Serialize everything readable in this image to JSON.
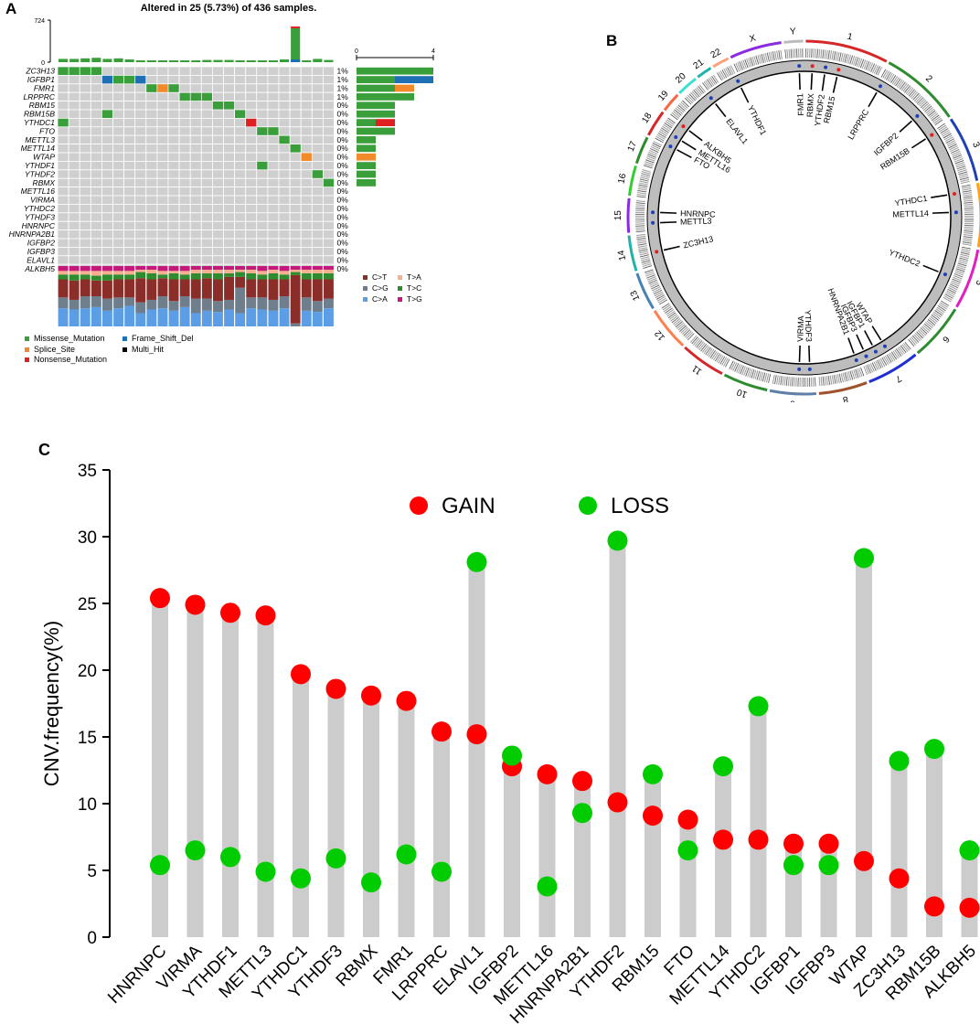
{
  "panels": {
    "a": "A",
    "b": "B",
    "c": "C"
  },
  "oncoplot": {
    "title": "Altered in 25 (5.73%) of 436 samples.",
    "tmb_axis": {
      "max": "724",
      "min": "0"
    },
    "side_axis": {
      "min": "0",
      "max": "4"
    },
    "genes": [
      {
        "name": "ZC3H13",
        "pct": "1%"
      },
      {
        "name": "IGFBP1",
        "pct": "1%"
      },
      {
        "name": "FMR1",
        "pct": "1%"
      },
      {
        "name": "LRPPRC",
        "pct": "1%"
      },
      {
        "name": "RBM15",
        "pct": "0%"
      },
      {
        "name": "RBM15B",
        "pct": "0%"
      },
      {
        "name": "YTHDC1",
        "pct": "0%"
      },
      {
        "name": "FTO",
        "pct": "0%"
      },
      {
        "name": "METTL3",
        "pct": "0%"
      },
      {
        "name": "METTL14",
        "pct": "0%"
      },
      {
        "name": "WTAP",
        "pct": "0%"
      },
      {
        "name": "YTHDF1",
        "pct": "0%"
      },
      {
        "name": "YTHDF2",
        "pct": "0%"
      },
      {
        "name": "RBMX",
        "pct": "0%"
      },
      {
        "name": "METTL16",
        "pct": "0%"
      },
      {
        "name": "VIRMA",
        "pct": "0%"
      },
      {
        "name": "YTHDC2",
        "pct": "0%"
      },
      {
        "name": "YTHDF3",
        "pct": "0%"
      },
      {
        "name": "HNRNPC",
        "pct": "0%"
      },
      {
        "name": "HNRNPA2B1",
        "pct": "0%"
      },
      {
        "name": "IGFBP2",
        "pct": "0%"
      },
      {
        "name": "IGFBP3",
        "pct": "0%"
      },
      {
        "name": "ELAVL1",
        "pct": "0%"
      },
      {
        "name": "ALKBH5",
        "pct": "0%"
      }
    ],
    "side_bars": [
      [
        {
          "t": "m",
          "v": 4
        }
      ],
      [
        {
          "t": "m",
          "v": 2
        },
        {
          "t": "f",
          "v": 2
        }
      ],
      [
        {
          "t": "m",
          "v": 2
        },
        {
          "t": "s",
          "v": 1
        }
      ],
      [
        {
          "t": "m",
          "v": 3
        }
      ],
      [
        {
          "t": "m",
          "v": 2
        }
      ],
      [
        {
          "t": "m",
          "v": 2
        }
      ],
      [
        {
          "t": "m",
          "v": 1
        },
        {
          "t": "n",
          "v": 1
        }
      ],
      [
        {
          "t": "m",
          "v": 2
        }
      ],
      [
        {
          "t": "m",
          "v": 1
        }
      ],
      [
        {
          "t": "m",
          "v": 1
        }
      ],
      [
        {
          "t": "s",
          "v": 1
        }
      ],
      [
        {
          "t": "m",
          "v": 1
        }
      ],
      [
        {
          "t": "m",
          "v": 1
        }
      ],
      [
        {
          "t": "m",
          "v": 1
        }
      ]
    ],
    "cells": [
      {
        "row": 0,
        "col": 0,
        "t": "m"
      },
      {
        "row": 0,
        "col": 1,
        "t": "m"
      },
      {
        "row": 0,
        "col": 2,
        "t": "m"
      },
      {
        "row": 0,
        "col": 3,
        "t": "m"
      },
      {
        "row": 1,
        "col": 4,
        "t": "f"
      },
      {
        "row": 1,
        "col": 5,
        "t": "m"
      },
      {
        "row": 1,
        "col": 6,
        "t": "m"
      },
      {
        "row": 1,
        "col": 7,
        "t": "f"
      },
      {
        "row": 2,
        "col": 8,
        "t": "m"
      },
      {
        "row": 2,
        "col": 9,
        "t": "s"
      },
      {
        "row": 2,
        "col": 10,
        "t": "m"
      },
      {
        "row": 3,
        "col": 11,
        "t": "m"
      },
      {
        "row": 3,
        "col": 12,
        "t": "m"
      },
      {
        "row": 3,
        "col": 13,
        "t": "m"
      },
      {
        "row": 4,
        "col": 14,
        "t": "m"
      },
      {
        "row": 4,
        "col": 15,
        "t": "m"
      },
      {
        "row": 5,
        "col": 4,
        "t": "m"
      },
      {
        "row": 5,
        "col": 16,
        "t": "m"
      },
      {
        "row": 6,
        "col": 0,
        "t": "m"
      },
      {
        "row": 6,
        "col": 17,
        "t": "n"
      },
      {
        "row": 7,
        "col": 18,
        "t": "m"
      },
      {
        "row": 7,
        "col": 19,
        "t": "m"
      },
      {
        "row": 8,
        "col": 20,
        "t": "m"
      },
      {
        "row": 9,
        "col": 21,
        "t": "m"
      },
      {
        "row": 10,
        "col": 22,
        "t": "s"
      },
      {
        "row": 11,
        "col": 18,
        "t": "m"
      },
      {
        "row": 12,
        "col": 23,
        "t": "m"
      },
      {
        "row": 13,
        "col": 24,
        "t": "m"
      }
    ],
    "tmb": [
      {
        "v": 0.06,
        "t": "m"
      },
      {
        "v": 0.06,
        "t": "m"
      },
      {
        "v": 0.07,
        "t": "m"
      },
      {
        "v": 0.08,
        "t": "m"
      },
      {
        "v": 0.06,
        "t": "m"
      },
      {
        "v": 0.07,
        "t": "m"
      },
      {
        "v": 0.05,
        "t": "m"
      },
      {
        "v": 0.03,
        "t": "m"
      },
      {
        "v": 0.03,
        "t": "m"
      },
      {
        "v": 0.03,
        "t": "m"
      },
      {
        "v": 0.02,
        "t": "m"
      },
      {
        "v": 0.02,
        "t": "m"
      },
      {
        "v": 0.03,
        "t": "m"
      },
      {
        "v": 0.04,
        "t": "m"
      },
      {
        "v": 0.04,
        "t": "m"
      },
      {
        "v": 0.04,
        "t": "m"
      },
      {
        "v": 0.03,
        "t": "m"
      },
      {
        "v": 0.02,
        "t": "m"
      },
      {
        "v": 0.03,
        "t": "m"
      },
      {
        "v": 0.02,
        "t": "m"
      },
      {
        "v": 0.05,
        "t": "m"
      },
      {
        "v": 0.62,
        "t": "mt"
      },
      {
        "v": 0.03,
        "t": "m"
      },
      {
        "v": 0.06,
        "t": "m"
      },
      {
        "v": 0.04,
        "t": "m"
      }
    ],
    "titv": [
      [
        0.3,
        0.18,
        0.3,
        0.08,
        0.06,
        0.08
      ],
      [
        0.28,
        0.16,
        0.32,
        0.1,
        0.06,
        0.08
      ],
      [
        0.3,
        0.2,
        0.28,
        0.08,
        0.06,
        0.08
      ],
      [
        0.32,
        0.18,
        0.26,
        0.08,
        0.08,
        0.08
      ],
      [
        0.26,
        0.2,
        0.3,
        0.1,
        0.06,
        0.08
      ],
      [
        0.3,
        0.18,
        0.3,
        0.08,
        0.06,
        0.08
      ],
      [
        0.34,
        0.14,
        0.3,
        0.08,
        0.06,
        0.08
      ],
      [
        0.22,
        0.18,
        0.4,
        0.1,
        0.04,
        0.06
      ],
      [
        0.28,
        0.16,
        0.34,
        0.1,
        0.06,
        0.06
      ],
      [
        0.3,
        0.2,
        0.3,
        0.06,
        0.06,
        0.08
      ],
      [
        0.26,
        0.16,
        0.36,
        0.1,
        0.04,
        0.08
      ],
      [
        0.32,
        0.18,
        0.28,
        0.08,
        0.06,
        0.08
      ],
      [
        0.22,
        0.24,
        0.32,
        0.1,
        0.06,
        0.06
      ],
      [
        0.26,
        0.2,
        0.34,
        0.08,
        0.06,
        0.06
      ],
      [
        0.24,
        0.18,
        0.36,
        0.1,
        0.06,
        0.06
      ],
      [
        0.28,
        0.16,
        0.38,
        0.06,
        0.06,
        0.06
      ],
      [
        0.22,
        0.42,
        0.18,
        0.08,
        0.04,
        0.06
      ],
      [
        0.3,
        0.18,
        0.3,
        0.1,
        0.06,
        0.06
      ],
      [
        0.28,
        0.2,
        0.3,
        0.08,
        0.06,
        0.08
      ],
      [
        0.26,
        0.18,
        0.34,
        0.1,
        0.06,
        0.06
      ],
      [
        0.3,
        0.2,
        0.28,
        0.08,
        0.06,
        0.08
      ],
      [
        0.0,
        0.05,
        0.8,
        0.05,
        0.04,
        0.06
      ],
      [
        0.26,
        0.22,
        0.3,
        0.1,
        0.06,
        0.06
      ],
      [
        0.24,
        0.18,
        0.36,
        0.1,
        0.06,
        0.06
      ],
      [
        0.3,
        0.16,
        0.32,
        0.1,
        0.06,
        0.06
      ]
    ],
    "titv_legend": [
      {
        "label": "C>T",
        "color": "#8b2e2a"
      },
      {
        "label": "T>A",
        "color": "#f6b08f"
      },
      {
        "label": "C>G",
        "color": "#6e7e8c"
      },
      {
        "label": "T>C",
        "color": "#2e8b2e"
      },
      {
        "label": "C>A",
        "color": "#5b9ee6"
      },
      {
        "label": "T>G",
        "color": "#c4197a"
      }
    ],
    "variant_legend": [
      {
        "label": "Missense_Mutation",
        "color": "#3a9e3a"
      },
      {
        "label": "Frame_Shift_Del",
        "color": "#1f6fb4"
      },
      {
        "label": "Splice_Site",
        "color": "#f08a2a"
      },
      {
        "label": "Multi_Hit",
        "color": "#000000"
      },
      {
        "label": "Nonsense_Mutation",
        "color": "#e02020"
      }
    ]
  },
  "circos": {
    "chromosomes": [
      "1",
      "2",
      "3",
      "4",
      "5",
      "6",
      "7",
      "8",
      "9",
      "10",
      "11",
      "12",
      "13",
      "14",
      "15",
      "16",
      "17",
      "18",
      "19",
      "20",
      "21",
      "22",
      "X",
      "Y"
    ],
    "gene_labels": [
      {
        "name": "FMR1",
        "angle": -2
      },
      {
        "name": "RBMX",
        "angle": 3
      },
      {
        "name": "YTHDF2",
        "angle": 8
      },
      {
        "name": "RBM15",
        "angle": 13
      },
      {
        "name": "LRPPRC",
        "angle": 30
      },
      {
        "name": "IGFBP2",
        "angle": 48
      },
      {
        "name": "RBM15B",
        "angle": 57
      },
      {
        "name": "YTHDC1",
        "angle": 81
      },
      {
        "name": "METTL14",
        "angle": 88
      },
      {
        "name": "YTHDC2",
        "angle": 112
      },
      {
        "name": "WTAP",
        "angle": 148
      },
      {
        "name": "IGFBP1",
        "angle": 152
      },
      {
        "name": "IGFBP3",
        "angle": 156
      },
      {
        "name": "HNRNPA2B1",
        "angle": 160
      },
      {
        "name": "YTHDF3",
        "angle": 178
      },
      {
        "name": "VIRMA",
        "angle": 182
      },
      {
        "name": "ZC3H13",
        "angle": 257
      },
      {
        "name": "METTL3",
        "angle": 268
      },
      {
        "name": "HNRNPC",
        "angle": 272
      },
      {
        "name": "FTO",
        "angle": 298
      },
      {
        "name": "METTL16",
        "angle": 302
      },
      {
        "name": "ALKBH5",
        "angle": 307
      },
      {
        "name": "ELAVL1",
        "angle": 322
      },
      {
        "name": "YTHDF1",
        "angle": 334
      }
    ]
  },
  "chart_data": {
    "type": "scatter",
    "ylabel": "CNV.frequency(%)",
    "ylim": [
      0,
      35
    ],
    "yticks": [
      0,
      5,
      10,
      15,
      20,
      25,
      30,
      35
    ],
    "categories": [
      "HNRNPC",
      "VIRMA",
      "YTHDF1",
      "METTL3",
      "YTHDC1",
      "YTHDF3",
      "RBMX",
      "FMR1",
      "LRPPRC",
      "ELAVL1",
      "IGFBP2",
      "METTL16",
      "HNRNPA2B1",
      "YTHDF2",
      "RBM15",
      "FTO",
      "METTL14",
      "YTHDC2",
      "IGFBP1",
      "IGFBP3",
      "WTAP",
      "ZC3H13",
      "RBM15B",
      "ALKBH5"
    ],
    "series": [
      {
        "name": "GAIN",
        "color": "#ff0000",
        "values": [
          25.4,
          24.9,
          24.3,
          24.1,
          19.7,
          18.6,
          18.1,
          17.7,
          15.4,
          15.2,
          12.8,
          12.2,
          11.7,
          10.1,
          9.1,
          8.8,
          7.3,
          7.3,
          7.0,
          7.0,
          5.7,
          4.4,
          2.3,
          2.2
        ]
      },
      {
        "name": "LOSS",
        "color": "#00cc00",
        "values": [
          5.4,
          6.5,
          6.0,
          4.9,
          4.4,
          5.9,
          4.1,
          6.2,
          4.9,
          28.1,
          13.6,
          3.8,
          9.3,
          29.7,
          12.2,
          6.5,
          12.8,
          17.3,
          5.4,
          5.4,
          28.4,
          13.2,
          14.1,
          6.5
        ]
      }
    ],
    "legend_position": "top"
  }
}
